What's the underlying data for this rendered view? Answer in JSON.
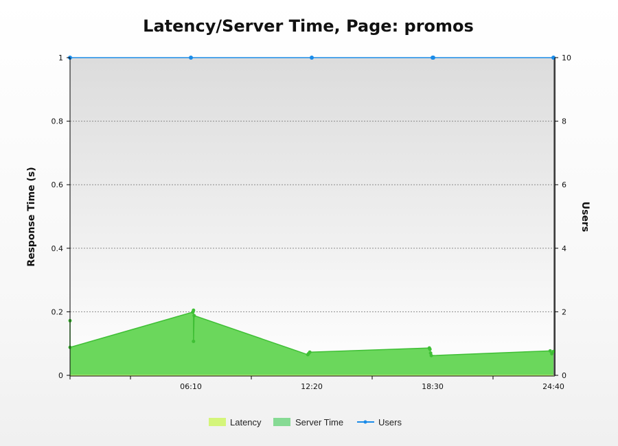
{
  "chart_data": {
    "type": "area",
    "title": "Latency/Server Time, Page: promos",
    "ylabel": "Response Time (s)",
    "y2label": "Users",
    "xlabel": "",
    "x_ticks": [
      "06:10",
      "12:20",
      "18:30",
      "24:40"
    ],
    "x_domain_minutes": [
      0,
      1480
    ],
    "x_tick_minutes": [
      370,
      740,
      1110,
      1480
    ],
    "ylim": [
      0,
      1
    ],
    "y_ticks": [
      "0",
      "0.2",
      "0.4",
      "0.6",
      "0.8",
      "1"
    ],
    "y2lim": [
      0,
      10
    ],
    "y2_ticks": [
      "0",
      "2",
      "4",
      "6",
      "8",
      "10"
    ],
    "grid": true,
    "legend_position": "bottom",
    "series": [
      {
        "name": "Latency",
        "color": "#d4f57a",
        "axis": "left",
        "x_minutes": [
          0,
          1480
        ],
        "values": [
          0,
          0
        ]
      },
      {
        "name": "Server Time",
        "color": "#5ed44e",
        "axis": "left",
        "x_minutes": [
          0,
          0,
          376,
          378,
          378,
          380,
          728,
          730,
          734,
          1100,
          1102,
          1104,
          1106,
          1470,
          1475,
          1480
        ],
        "values": [
          0.172,
          0.088,
          0.199,
          0.205,
          0.107,
          0.188,
          0.065,
          0.068,
          0.073,
          0.086,
          0.082,
          0.07,
          0.062,
          0.077,
          0.068,
          0.075
        ]
      },
      {
        "name": "Users",
        "color": "#1a8be8",
        "axis": "right",
        "x_minutes": [
          0,
          370,
          740,
          1110,
          1112,
          1480
        ],
        "values": [
          10,
          10,
          10,
          10,
          10,
          10
        ]
      }
    ]
  }
}
